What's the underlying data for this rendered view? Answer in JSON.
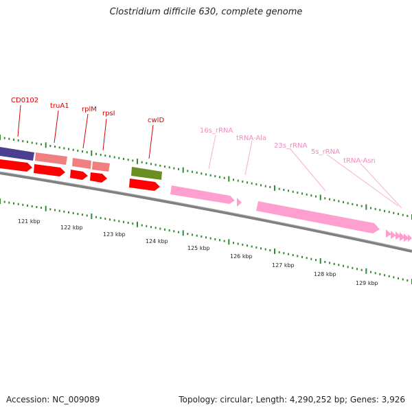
{
  "title": "Clostridium difficile 630, complete genome",
  "footer": {
    "accession": "Accession: NC_009089",
    "summary": "Topology: circular; Length: 4,290,252 bp; Genes: 3,926"
  },
  "colors": {
    "gene_red": "#ff0000",
    "cds_salmon": "#f08080",
    "cds_purple": "#4b3f8f",
    "cds_olive": "#6b8e23",
    "rna_pink": "#ff9fcf",
    "tick_green": "#2e8b2e",
    "backbone": "#808080",
    "label_red": "#d40000",
    "label_pink": "#f08cbc"
  },
  "scale": {
    "kbp_labels": [
      "121 kbp",
      "122 kbp",
      "123 kbp",
      "124 kbp",
      "125 kbp",
      "126 kbp",
      "127 kbp",
      "128 kbp",
      "129 kbp"
    ]
  },
  "features": [
    {
      "name": "CD0102",
      "kind": "gene"
    },
    {
      "name": "truA1",
      "kind": "gene"
    },
    {
      "name": "rplM",
      "kind": "gene"
    },
    {
      "name": "rpsI",
      "kind": "gene"
    },
    {
      "name": "cwlD",
      "kind": "gene"
    },
    {
      "name": "16s_rRNA",
      "kind": "rRNA"
    },
    {
      "name": "tRNA-Ala",
      "kind": "tRNA"
    },
    {
      "name": "23s_rRNA",
      "kind": "rRNA"
    },
    {
      "name": "5s_rRNA",
      "kind": "rRNA"
    },
    {
      "name": "tRNA-Asn",
      "kind": "tRNA"
    }
  ]
}
